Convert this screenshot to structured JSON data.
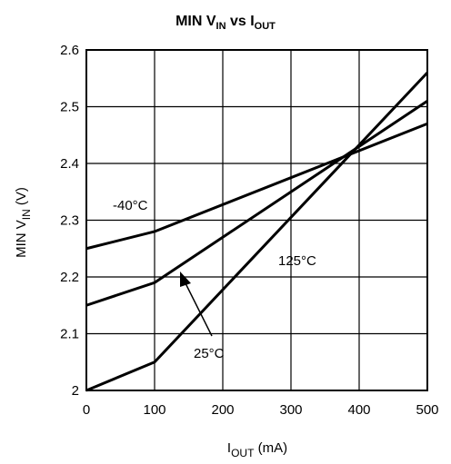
{
  "chart_data": {
    "type": "line",
    "title": {
      "prefix": "MIN V",
      "sub1": "IN",
      "mid": " vs I",
      "sub2": "OUT"
    },
    "xlabel": {
      "main": "I",
      "sub": "OUT",
      "unit": " (mA)"
    },
    "ylabel": {
      "main": "MIN V",
      "sub": "IN",
      "unit": " (V)"
    },
    "xlim": [
      0,
      500
    ],
    "ylim": [
      2.0,
      2.6
    ],
    "xticks": [
      0,
      100,
      200,
      300,
      400,
      500
    ],
    "yticks": [
      2.0,
      2.1,
      2.2,
      2.3,
      2.4,
      2.5,
      2.6
    ],
    "xtick_labels": [
      "0",
      "100",
      "200",
      "300",
      "400",
      "500"
    ],
    "ytick_labels": [
      "2",
      "2.1",
      "2.2",
      "2.3",
      "2.4",
      "2.5",
      "2.6"
    ],
    "grid": true,
    "series": [
      {
        "name": "-40°C",
        "x": [
          0,
          100,
          500
        ],
        "y": [
          2.25,
          2.28,
          2.47
        ]
      },
      {
        "name": "25°C",
        "x": [
          0,
          100,
          500
        ],
        "y": [
          2.15,
          2.19,
          2.51
        ]
      },
      {
        "name": "125°C",
        "x": [
          0,
          100,
          500
        ],
        "y": [
          2.0,
          2.05,
          2.56
        ]
      }
    ],
    "annotations": {
      "label_m40": "-40°C",
      "label_25": "25°C",
      "label_125": "125°C"
    }
  }
}
